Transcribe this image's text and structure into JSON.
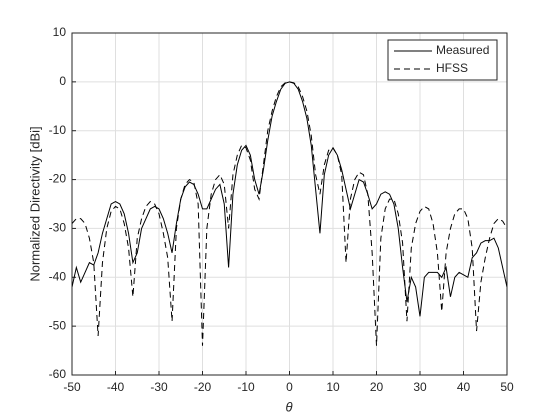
{
  "chart_data": {
    "type": "line",
    "xlabel": "θ",
    "ylabel": "Normalized Directivity [dBi]",
    "x": [
      -50,
      -49,
      -48,
      -47,
      -46,
      -45,
      -44,
      -43,
      -42,
      -41,
      -40,
      -39,
      -38,
      -37,
      -36,
      -35,
      -34,
      -33,
      -32,
      -31,
      -30,
      -29,
      -28,
      -27,
      -26,
      -25,
      -24,
      -23,
      -22,
      -21,
      -20,
      -19,
      -18,
      -17,
      -16,
      -15,
      -14,
      -13,
      -12,
      -11,
      -10,
      -9,
      -8,
      -7,
      -6,
      -5,
      -4,
      -3,
      -2,
      -1,
      0,
      1,
      2,
      3,
      4,
      5,
      6,
      7,
      8,
      9,
      10,
      11,
      12,
      13,
      14,
      15,
      16,
      17,
      18,
      19,
      20,
      21,
      22,
      23,
      24,
      25,
      26,
      27,
      28,
      29,
      30,
      31,
      32,
      33,
      34,
      35,
      36,
      37,
      38,
      39,
      40,
      41,
      42,
      43,
      44,
      45,
      46,
      47,
      48,
      49,
      50
    ],
    "series": [
      {
        "name": "Measured",
        "color": "#000000",
        "style": "solid",
        "values": [
          -42,
          -38,
          -41,
          -39,
          -37,
          -37.5,
          -35,
          -31,
          -28,
          -25,
          -24.5,
          -25,
          -27,
          -31,
          -37,
          -35,
          -30,
          -28,
          -26,
          -25.5,
          -26,
          -28,
          -31,
          -35,
          -29,
          -24,
          -21.5,
          -20.5,
          -21,
          -23,
          -26,
          -26,
          -24,
          -22,
          -21,
          -25,
          -38,
          -23,
          -17,
          -14,
          -13,
          -15,
          -20,
          -23,
          -18,
          -12,
          -7,
          -4,
          -1.5,
          -0.3,
          0,
          -0.3,
          -1.5,
          -4,
          -7.5,
          -13,
          -22,
          -31,
          -19,
          -15,
          -13.5,
          -15,
          -18,
          -22,
          -26,
          -23,
          -20,
          -20.5,
          -23,
          -26,
          -25,
          -23,
          -22.5,
          -23,
          -25,
          -30,
          -38,
          -45,
          -40,
          -42,
          -48,
          -40,
          -39,
          -39,
          -39,
          -40,
          -38,
          -44,
          -40,
          -39,
          -39.5,
          -40,
          -36,
          -35,
          -33,
          -32.5,
          -32.5,
          -32,
          -34,
          -38,
          -42
        ]
      },
      {
        "name": "HFSS",
        "color": "#000000",
        "style": "dashed",
        "values": [
          -29,
          -28,
          -28,
          -29,
          -32,
          -37,
          -52,
          -37,
          -30,
          -26.5,
          -25.5,
          -26,
          -29,
          -34,
          -44,
          -32,
          -28,
          -25.5,
          -24.5,
          -25,
          -27,
          -31,
          -36,
          -49,
          -30,
          -24,
          -21,
          -20,
          -20.5,
          -25,
          -54,
          -30,
          -23,
          -20,
          -19,
          -21,
          -30,
          -19,
          -15,
          -13,
          -13.5,
          -16,
          -22,
          -24,
          -17,
          -10,
          -6,
          -3,
          -1,
          -0.2,
          0,
          -0.2,
          -1,
          -3,
          -6,
          -11,
          -19,
          -23,
          -17,
          -14,
          -13.5,
          -15,
          -19,
          -37,
          -24,
          -20,
          -18.5,
          -19,
          -23,
          -35,
          -54,
          -32,
          -26,
          -24,
          -24,
          -27,
          -33,
          -49,
          -34,
          -29,
          -26.5,
          -25.5,
          -26,
          -29,
          -35,
          -47,
          -35,
          -30,
          -27,
          -26,
          -26,
          -28,
          -34,
          -51,
          -41,
          -36,
          -32,
          -29,
          -28,
          -28.5,
          -30
        ]
      }
    ],
    "xlim": [
      -50,
      50
    ],
    "xticks": [
      -50,
      -40,
      -30,
      -20,
      -10,
      0,
      10,
      20,
      30,
      40,
      50
    ],
    "ylim": [
      -60,
      10
    ],
    "yticks": [
      -60,
      -50,
      -40,
      -30,
      -20,
      -10,
      0,
      10
    ],
    "grid": true,
    "legend": "northeast"
  }
}
